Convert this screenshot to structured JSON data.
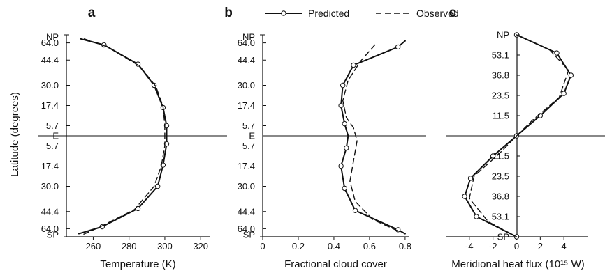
{
  "figure": {
    "y_title": "Latitude (degrees)",
    "legend": {
      "predicted": "Predicted",
      "observed": "Observed"
    },
    "colors": {
      "line": "#111111",
      "marker_fill": "#ffffff"
    }
  },
  "chart_data": [
    {
      "id": "a",
      "type": "line",
      "panel_label": "a",
      "xlabel": "Temperature (K)",
      "xlim": [
        245,
        325
      ],
      "xticks": [
        260,
        280,
        300,
        320
      ],
      "x_tick_labels": [
        "260",
        "280",
        "300",
        "320"
      ],
      "ylim": [
        -1,
        1
      ],
      "y_tick_values": [
        0.92,
        0.75,
        0.5,
        0.3,
        0.1,
        0.0,
        -0.1,
        -0.3,
        -0.5,
        -0.75,
        -0.92
      ],
      "y_tick_labels": [
        "NP",
        "64.0",
        "44.4",
        "30.0",
        "17.4",
        "5.7",
        "E",
        "5.7",
        "17.4",
        "30.0",
        "44.4",
        "64.0",
        "SP"
      ],
      "y_tick_label_positions": [
        0.98,
        0.92,
        0.75,
        0.5,
        0.3,
        0.1,
        0.0,
        -0.1,
        -0.3,
        -0.5,
        -0.75,
        -0.92,
        -0.98
      ],
      "zero_line": true,
      "series": [
        {
          "name": "Predicted",
          "style": "solid",
          "markers": true,
          "points": [
            [
              253,
              0.96
            ],
            [
              266,
              0.9
            ],
            [
              285,
              0.71
            ],
            [
              294,
              0.5
            ],
            [
              299,
              0.28
            ],
            [
              301,
              0.1
            ],
            [
              301,
              -0.08
            ],
            [
              299,
              -0.29
            ],
            [
              296,
              -0.5
            ],
            [
              285,
              -0.72
            ],
            [
              265,
              -0.9
            ],
            [
              252,
              -0.97
            ]
          ],
          "marker_points": [
            [
              266,
              0.9
            ],
            [
              285,
              0.71
            ],
            [
              294,
              0.5
            ],
            [
              299,
              0.28
            ],
            [
              301,
              0.1
            ],
            [
              301,
              -0.08
            ],
            [
              299,
              -0.29
            ],
            [
              296,
              -0.5
            ],
            [
              285,
              -0.72
            ],
            [
              265,
              -0.9
            ]
          ]
        },
        {
          "name": "Observed",
          "style": "dashed",
          "markers": false,
          "points": [
            [
              255,
              0.96
            ],
            [
              268,
              0.88
            ],
            [
              286,
              0.69
            ],
            [
              295,
              0.49
            ],
            [
              299,
              0.29
            ],
            [
              300,
              0.1
            ],
            [
              300,
              -0.1
            ],
            [
              298,
              -0.3
            ],
            [
              294,
              -0.5
            ],
            [
              283,
              -0.73
            ],
            [
              264,
              -0.9
            ],
            [
              254,
              -0.98
            ]
          ]
        }
      ]
    },
    {
      "id": "b",
      "type": "line",
      "panel_label": "b",
      "xlabel": "Fractional cloud cover",
      "xlim": [
        0,
        0.82
      ],
      "xticks": [
        0,
        0.2,
        0.4,
        0.6,
        0.8
      ],
      "x_tick_labels": [
        "0",
        "0.2",
        "0.4",
        "0.6",
        "0.8"
      ],
      "ylim": [
        -1,
        1
      ],
      "y_tick_values": [
        0.92,
        0.75,
        0.5,
        0.3,
        0.1,
        0.0,
        -0.1,
        -0.3,
        -0.5,
        -0.75,
        -0.92
      ],
      "y_tick_labels": [
        "NP",
        "64.0",
        "44.4",
        "30.0",
        "17.4",
        "5.7",
        "E",
        "5.7",
        "17.4",
        "30.0",
        "44.4",
        "64.0",
        "SP"
      ],
      "y_tick_label_positions": [
        0.98,
        0.92,
        0.75,
        0.5,
        0.3,
        0.1,
        0.0,
        -0.1,
        -0.3,
        -0.5,
        -0.75,
        -0.92,
        -0.98
      ],
      "zero_line": true,
      "series": [
        {
          "name": "Predicted",
          "style": "solid",
          "markers": true,
          "points": [
            [
              0.8,
              0.94
            ],
            [
              0.76,
              0.88
            ],
            [
              0.51,
              0.7
            ],
            [
              0.45,
              0.5
            ],
            [
              0.44,
              0.3
            ],
            [
              0.46,
              0.12
            ],
            [
              0.48,
              0.0
            ],
            [
              0.47,
              -0.12
            ],
            [
              0.44,
              -0.3
            ],
            [
              0.46,
              -0.52
            ],
            [
              0.52,
              -0.74
            ],
            [
              0.76,
              -0.93
            ],
            [
              0.8,
              -0.97
            ]
          ],
          "marker_points": [
            [
              0.76,
              0.88
            ],
            [
              0.51,
              0.7
            ],
            [
              0.45,
              0.5
            ],
            [
              0.44,
              0.3
            ],
            [
              0.46,
              0.12
            ],
            [
              0.47,
              -0.12
            ],
            [
              0.44,
              -0.3
            ],
            [
              0.46,
              -0.52
            ],
            [
              0.52,
              -0.74
            ],
            [
              0.76,
              -0.93
            ]
          ]
        },
        {
          "name": "Observed",
          "style": "dashed",
          "markers": false,
          "points": [
            [
              0.63,
              0.9
            ],
            [
              0.55,
              0.74
            ],
            [
              0.48,
              0.55
            ],
            [
              0.45,
              0.35
            ],
            [
              0.47,
              0.18
            ],
            [
              0.51,
              0.08
            ],
            [
              0.53,
              -0.05
            ],
            [
              0.51,
              -0.25
            ],
            [
              0.49,
              -0.45
            ],
            [
              0.52,
              -0.65
            ],
            [
              0.62,
              -0.83
            ],
            [
              0.77,
              -0.95
            ]
          ]
        }
      ]
    },
    {
      "id": "c",
      "type": "line",
      "panel_label": "c",
      "xlabel": "Meridional heat flux (10¹⁵ W)",
      "xlim": [
        -6,
        6
      ],
      "xticks": [
        -4,
        -2,
        0,
        2,
        4
      ],
      "x_tick_labels": [
        "-4",
        "-2",
        "0",
        "2",
        "4"
      ],
      "ylim": [
        -1,
        1
      ],
      "y_tick_values": [
        0.8,
        0.6,
        0.4,
        0.2,
        0.0,
        -0.2,
        -0.4,
        -0.6,
        -0.8
      ],
      "y_tick_labels": [
        "NP",
        "53.1",
        "36.8",
        "23.5",
        "11.5",
        "11.5",
        "23.5",
        "36.8",
        "53.1",
        "SP"
      ],
      "y_tick_label_positions": [
        1.0,
        0.8,
        0.6,
        0.4,
        0.2,
        -0.2,
        -0.4,
        -0.6,
        -0.8,
        -1.0
      ],
      "zero_line": true,
      "series": [
        {
          "name": "Predicted",
          "style": "solid",
          "markers": true,
          "points": [
            [
              0,
              1.0
            ],
            [
              3.4,
              0.82
            ],
            [
              4.6,
              0.6
            ],
            [
              4.0,
              0.42
            ],
            [
              2.0,
              0.2
            ],
            [
              0,
              0.0
            ],
            [
              -2.0,
              -0.2
            ],
            [
              -3.9,
              -0.42
            ],
            [
              -4.4,
              -0.6
            ],
            [
              -3.4,
              -0.8
            ],
            [
              0,
              -1.0
            ]
          ],
          "marker_points": [
            [
              0,
              1.0
            ],
            [
              3.4,
              0.82
            ],
            [
              4.6,
              0.6
            ],
            [
              4.0,
              0.42
            ],
            [
              2.0,
              0.2
            ],
            [
              0,
              0.0
            ],
            [
              -2.0,
              -0.2
            ],
            [
              -3.9,
              -0.42
            ],
            [
              -4.4,
              -0.6
            ],
            [
              -3.4,
              -0.8
            ],
            [
              0,
              -1.0
            ]
          ]
        },
        {
          "name": "Observed",
          "style": "dashed",
          "markers": false,
          "points": [
            [
              0,
              1.0
            ],
            [
              2.8,
              0.85
            ],
            [
              4.4,
              0.65
            ],
            [
              3.6,
              0.38
            ],
            [
              1.3,
              0.15
            ],
            [
              0,
              0.0
            ],
            [
              -1.5,
              -0.18
            ],
            [
              -3.6,
              -0.4
            ],
            [
              -4.0,
              -0.62
            ],
            [
              -2.4,
              -0.85
            ],
            [
              0,
              -1.0
            ]
          ]
        }
      ]
    }
  ]
}
